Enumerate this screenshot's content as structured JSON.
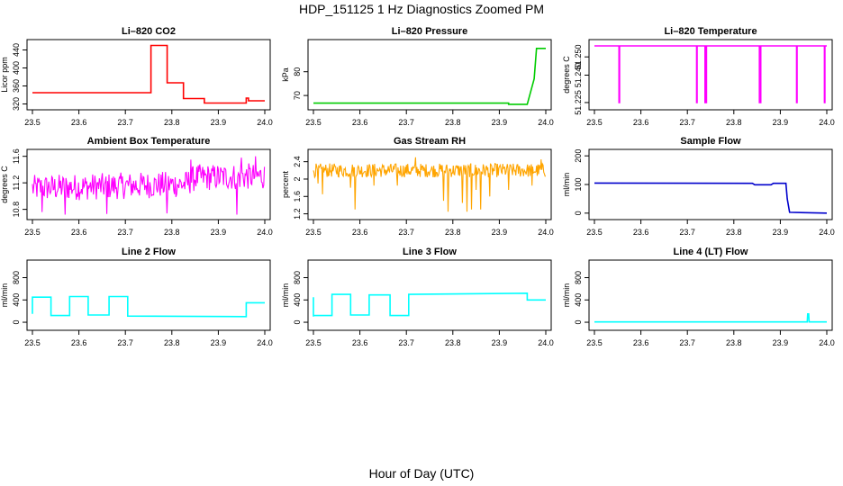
{
  "figure": {
    "title": "HDP_151125  1 Hz Diagnostics Zoomed PM",
    "xlabel": "Hour of Day (UTC)"
  },
  "chart_data": [
    {
      "type": "line",
      "title": "Li–820 CO2",
      "ylabel": "Licor ppm",
      "color": "#ff0000",
      "xlim": [
        23.5,
        24.0
      ],
      "xticks": [
        "23.5",
        "23.6",
        "23.7",
        "23.8",
        "23.9",
        "24.0"
      ],
      "ylim": [
        315,
        455
      ],
      "yticks": [
        320,
        360,
        400,
        440
      ],
      "series": [
        {
          "x": [
            23.5,
            23.755,
            23.755,
            23.79,
            23.79,
            23.825,
            23.825,
            23.87,
            23.87,
            23.96,
            23.96,
            23.965,
            23.965,
            24.0
          ],
          "y": [
            345,
            345,
            450,
            450,
            367,
            367,
            332,
            332,
            322,
            322,
            333,
            333,
            327,
            327
          ]
        }
      ]
    },
    {
      "type": "line",
      "title": "Li–820 Pressure",
      "ylabel": "kPa",
      "color": "#00cc00",
      "xlim": [
        23.5,
        24.0
      ],
      "xticks": [
        "23.5",
        "23.6",
        "23.7",
        "23.8",
        "23.9",
        "24.0"
      ],
      "ylim": [
        65.5,
        92
      ],
      "yticks": [
        70,
        80
      ],
      "series": [
        {
          "x": [
            23.5,
            23.92,
            23.92,
            23.96,
            23.975,
            23.98,
            24.0
          ],
          "y": [
            66.8,
            66.8,
            66.3,
            66.3,
            77,
            89.8,
            89.8
          ]
        }
      ]
    },
    {
      "type": "line",
      "title": "Li–820 Temperature",
      "ylabel": "degrees C",
      "color": "#ff00ff",
      "xlim": [
        23.5,
        24.0
      ],
      "xticks": [
        "23.5",
        "23.6",
        "23.7",
        "23.8",
        "23.9",
        "24.0"
      ],
      "ylim": [
        51.223,
        51.2575
      ],
      "yticks": [
        51.225,
        51.24,
        51.25
      ],
      "ytick_labels": [
        "51.225",
        "51.240",
        "51.250"
      ],
      "series": [
        {
          "x": [
            23.5,
            23.553,
            23.553,
            23.554,
            23.554,
            23.72,
            23.72,
            23.721,
            23.721,
            23.738,
            23.738,
            23.741,
            23.741,
            23.855,
            23.855,
            23.858,
            23.858,
            23.935,
            23.935,
            23.936,
            23.936,
            23.995,
            23.995,
            23.996,
            23.996,
            24.0
          ],
          "y": [
            51.256,
            51.256,
            51.225,
            51.225,
            51.256,
            51.256,
            51.225,
            51.225,
            51.256,
            51.256,
            51.225,
            51.225,
            51.256,
            51.256,
            51.225,
            51.225,
            51.256,
            51.256,
            51.225,
            51.225,
            51.256,
            51.256,
            51.225,
            51.225,
            51.256,
            51.256
          ]
        }
      ]
    },
    {
      "type": "line",
      "title": "Ambient Box Temperature",
      "ylabel": "degrees C",
      "color": "#ff00ff",
      "xlim": [
        23.5,
        24.0
      ],
      "xticks": [
        "23.5",
        "23.6",
        "23.7",
        "23.8",
        "23.9",
        "24.0"
      ],
      "ylim": [
        10.7,
        11.65
      ],
      "yticks": [
        10.8,
        11.2,
        11.6
      ],
      "noise": {
        "base": [
          [
            23.5,
            11.12
          ],
          [
            23.83,
            11.18
          ],
          [
            23.85,
            11.28
          ],
          [
            24.0,
            11.3
          ]
        ],
        "amp": 0.2,
        "step": 0.0016,
        "spikes": [
          [
            23.52,
            10.76
          ],
          [
            23.57,
            10.72
          ],
          [
            23.66,
            10.73
          ],
          [
            23.79,
            10.74
          ],
          [
            23.94,
            10.72
          ],
          [
            23.84,
            11.55
          ],
          [
            23.95,
            11.58
          ],
          [
            23.98,
            11.6
          ]
        ]
      }
    },
    {
      "type": "line",
      "title": "Gas Stream RH",
      "ylabel": "percent",
      "color": "#ffa500",
      "xlim": [
        23.5,
        24.0
      ],
      "xticks": [
        "23.5",
        "23.6",
        "23.7",
        "23.8",
        "23.9",
        "24.0"
      ],
      "ylim": [
        1.15,
        2.6
      ],
      "yticks": [
        1.2,
        1.6,
        2.0,
        2.4
      ],
      "noise": {
        "base": [
          [
            23.5,
            2.2
          ],
          [
            24.0,
            2.2
          ]
        ],
        "amp": 0.16,
        "step": 0.0014,
        "spikes": [
          [
            23.51,
            1.9
          ],
          [
            23.52,
            1.65
          ],
          [
            23.58,
            1.8
          ],
          [
            23.59,
            1.3
          ],
          [
            23.63,
            1.85
          ],
          [
            23.68,
            1.85
          ],
          [
            23.78,
            1.5
          ],
          [
            23.79,
            1.25
          ],
          [
            23.82,
            1.45
          ],
          [
            23.83,
            1.25
          ],
          [
            23.84,
            1.3
          ],
          [
            23.85,
            1.75
          ],
          [
            23.86,
            1.3
          ],
          [
            23.88,
            1.6
          ],
          [
            23.92,
            1.75
          ],
          [
            23.97,
            1.85
          ],
          [
            23.99,
            2.45
          ],
          [
            23.72,
            2.5
          ]
        ]
      }
    },
    {
      "type": "line",
      "title": "Sample Flow",
      "ylabel": "ml/min",
      "color": "#0000cc",
      "xlim": [
        23.5,
        24.0
      ],
      "xticks": [
        "23.5",
        "23.6",
        "23.7",
        "23.8",
        "23.9",
        "24.0"
      ],
      "ylim": [
        -10,
        210
      ],
      "yticks": [
        0,
        100,
        200
      ],
      "series": [
        {
          "x": [
            23.5,
            23.84,
            23.845,
            23.88,
            23.885,
            23.912,
            23.915,
            23.92,
            24.0
          ],
          "y": [
            105,
            104,
            99,
            99,
            104,
            104,
            50,
            3,
            0
          ]
        }
      ]
    },
    {
      "type": "line",
      "title": "Line 2 Flow",
      "ylabel": "ml/min",
      "color": "#00ffff",
      "xlim": [
        23.5,
        24.0
      ],
      "xticks": [
        "23.5",
        "23.6",
        "23.7",
        "23.8",
        "23.9",
        "24.0"
      ],
      "ylim": [
        -80,
        1050
      ],
      "yticks": [
        0,
        400,
        800
      ],
      "series": [
        {
          "x": [
            23.5,
            23.5,
            23.54,
            23.54,
            23.58,
            23.58,
            23.62,
            23.62,
            23.665,
            23.665,
            23.705,
            23.705,
            23.96,
            23.96,
            24.0
          ],
          "y": [
            150,
            450,
            450,
            120,
            120,
            460,
            460,
            130,
            130,
            460,
            460,
            110,
            100,
            350,
            350
          ]
        }
      ]
    },
    {
      "type": "line",
      "title": "Line 3 Flow",
      "ylabel": "ml/min",
      "color": "#00ffff",
      "xlim": [
        23.5,
        24.0
      ],
      "xticks": [
        "23.5",
        "23.6",
        "23.7",
        "23.8",
        "23.9",
        "24.0"
      ],
      "ylim": [
        -80,
        1050
      ],
      "yticks": [
        0,
        400,
        800
      ],
      "series": [
        {
          "x": [
            23.5,
            23.5,
            23.5,
            23.5,
            23.54,
            23.54,
            23.58,
            23.58,
            23.62,
            23.62,
            23.665,
            23.665,
            23.705,
            23.705,
            23.96,
            23.96,
            24.0
          ],
          "y": [
            100,
            450,
            450,
            120,
            120,
            500,
            500,
            130,
            130,
            490,
            490,
            120,
            120,
            500,
            520,
            400,
            400
          ]
        }
      ]
    },
    {
      "type": "line",
      "title": "Line 4 (LT) Flow",
      "ylabel": "ml/min",
      "color": "#00ffff",
      "xlim": [
        23.5,
        24.0
      ],
      "xticks": [
        "23.5",
        "23.6",
        "23.7",
        "23.8",
        "23.9",
        "24.0"
      ],
      "ylim": [
        -80,
        1050
      ],
      "yticks": [
        0,
        400,
        800
      ],
      "series": [
        {
          "x": [
            23.5,
            23.958,
            23.959,
            23.961,
            23.962,
            24.0
          ],
          "y": [
            5,
            5,
            150,
            150,
            5,
            5
          ]
        }
      ]
    }
  ]
}
